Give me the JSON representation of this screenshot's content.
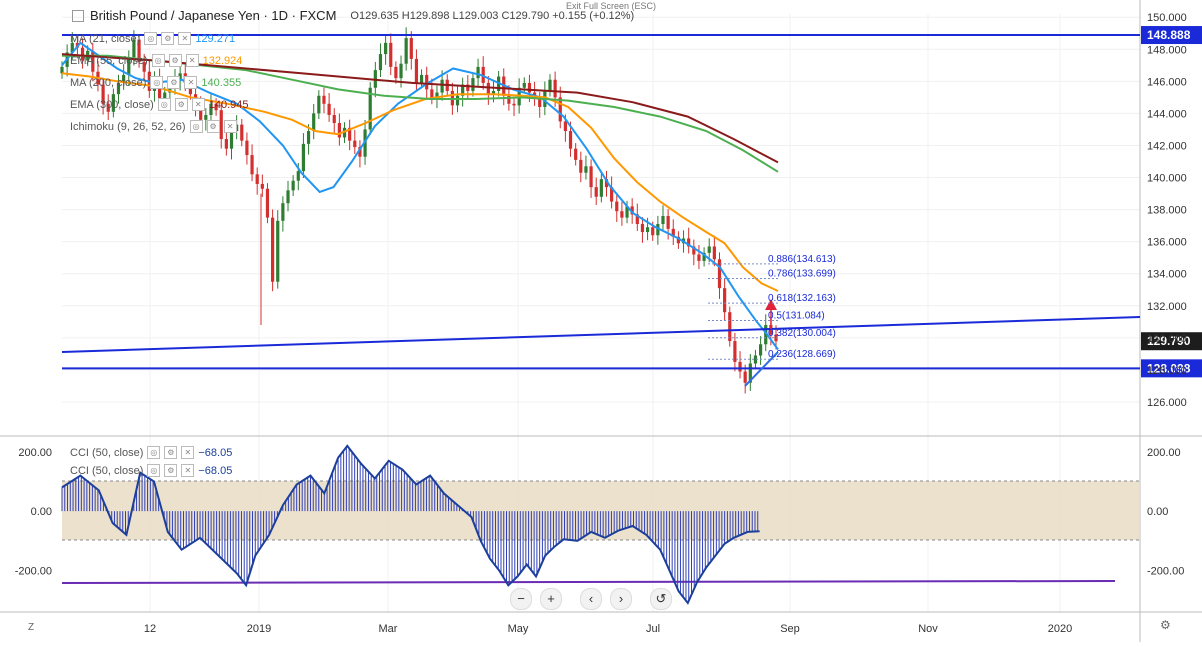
{
  "header": {
    "symbol": "British Pound / Japanese Yen · 1D · FXCM",
    "ohlc": "O129.635  H129.898  L129.003  C129.790  +0.155 (+0.12%)",
    "exit_fullscreen": "Exit Full Screen (ESC)"
  },
  "legend": [
    {
      "label": "MA (21, close)",
      "value": "129.271",
      "color": "#2196f3"
    },
    {
      "label": "EMA (55, close)",
      "value": "132.924",
      "color": "#ff9800"
    },
    {
      "label": "MA (200, close)",
      "value": "140.355",
      "color": "#4caf50"
    },
    {
      "label": "EMA (300, close)",
      "value": "140.945",
      "color": "#8b1a1a"
    },
    {
      "label": "Ichimoku (9, 26, 52, 26)",
      "value": "",
      "color": "#999999"
    }
  ],
  "cci_legend": [
    {
      "label": "CCI (50, close)",
      "value": "−68.05"
    },
    {
      "label": "CCI (50, close)",
      "value": "−68.05"
    }
  ],
  "nav": {
    "zoom_out": "−",
    "zoom_in": "+",
    "left": "‹",
    "right": "›",
    "reset": "↺"
  },
  "corner_left": "Z",
  "chart_data": {
    "type": "candlestick",
    "title": "British Pound / Japanese Yen · 1D · FXCM",
    "ylim": [
      125.5,
      150.2
    ],
    "y_ticks": [
      "150.000",
      "148.000",
      "146.000",
      "144.000",
      "142.000",
      "140.000",
      "138.000",
      "136.000",
      "134.000",
      "132.000",
      "130.000",
      "128.000",
      "126.000"
    ],
    "x_ticks": [
      "12",
      "2019",
      "Mar",
      "May",
      "Jul",
      "Sep",
      "Nov",
      "2020"
    ],
    "price_levels": [
      {
        "label": "148.888",
        "value": 148.888,
        "color": "#1a2ad8"
      },
      {
        "label": "129.790",
        "value": 129.79,
        "color": "#1d1d1d"
      },
      {
        "label": "128.098",
        "value": 128.098,
        "color": "#1a2ad8"
      }
    ],
    "fibonacci": [
      {
        "label": "0.886(134.613)",
        "value": 134.613
      },
      {
        "label": "0.786(133.699)",
        "value": 133.699
      },
      {
        "label": "0.618(132.163)",
        "value": 132.163
      },
      {
        "label": "0.5(131.084)",
        "value": 131.084
      },
      {
        "label": "0.382(130.004)",
        "value": 130.004
      },
      {
        "label": "0.236(128.669)",
        "value": 128.669
      }
    ],
    "series": [
      {
        "name": "MA (21, close)",
        "points": [
          [
            0,
            147.0
          ],
          [
            20,
            148.4
          ],
          [
            40,
            147.6
          ],
          [
            60,
            146.8
          ],
          [
            80,
            146.2
          ],
          [
            100,
            145.9
          ],
          [
            130,
            146.1
          ],
          [
            160,
            145.3
          ],
          [
            190,
            144.6
          ],
          [
            215,
            143.5
          ],
          [
            240,
            142.0
          ],
          [
            260,
            140.3
          ],
          [
            280,
            139.1
          ],
          [
            295,
            139.4
          ],
          [
            315,
            141.0
          ],
          [
            340,
            143.2
          ],
          [
            365,
            144.6
          ],
          [
            395,
            145.8
          ],
          [
            425,
            146.8
          ],
          [
            455,
            146.4
          ],
          [
            490,
            145.5
          ],
          [
            520,
            145.0
          ],
          [
            545,
            143.8
          ],
          [
            570,
            141.8
          ],
          [
            595,
            139.5
          ],
          [
            620,
            137.8
          ],
          [
            645,
            136.9
          ],
          [
            670,
            136.2
          ],
          [
            695,
            135.3
          ],
          [
            715,
            134.4
          ],
          [
            735,
            132.6
          ],
          [
            755,
            131.0
          ],
          [
            765,
            130.3
          ],
          [
            778,
            129.271
          ]
        ]
      },
      {
        "name": "EMA (55, close)",
        "points": [
          [
            0,
            146.5
          ],
          [
            30,
            146.3
          ],
          [
            60,
            146.0
          ],
          [
            100,
            145.7
          ],
          [
            140,
            145.0
          ],
          [
            180,
            144.6
          ],
          [
            220,
            144.1
          ],
          [
            250,
            143.6
          ],
          [
            275,
            142.9
          ],
          [
            300,
            142.7
          ],
          [
            330,
            143.4
          ],
          [
            360,
            144.2
          ],
          [
            395,
            144.9
          ],
          [
            430,
            145.2
          ],
          [
            470,
            145.2
          ],
          [
            500,
            145.1
          ],
          [
            525,
            145.0
          ],
          [
            550,
            144.4
          ],
          [
            575,
            143.1
          ],
          [
            600,
            141.2
          ],
          [
            625,
            139.7
          ],
          [
            650,
            138.5
          ],
          [
            675,
            137.5
          ],
          [
            700,
            136.6
          ],
          [
            720,
            135.9
          ],
          [
            740,
            134.4
          ],
          [
            760,
            133.4
          ],
          [
            778,
            132.924
          ]
        ]
      },
      {
        "name": "MA (200, close)",
        "points": [
          [
            0,
            147.6
          ],
          [
            50,
            147.6
          ],
          [
            100,
            147.3
          ],
          [
            150,
            147.0
          ],
          [
            200,
            146.7
          ],
          [
            250,
            146.1
          ],
          [
            300,
            145.5
          ],
          [
            350,
            145.1
          ],
          [
            400,
            144.9
          ],
          [
            450,
            144.9
          ],
          [
            500,
            145.0
          ],
          [
            550,
            144.8
          ],
          [
            600,
            144.4
          ],
          [
            650,
            143.8
          ],
          [
            700,
            142.9
          ],
          [
            740,
            141.7
          ],
          [
            778,
            140.355
          ]
        ]
      },
      {
        "name": "EMA (300, close)",
        "points": [
          [
            0,
            147.7
          ],
          [
            100,
            147.3
          ],
          [
            200,
            146.8
          ],
          [
            260,
            146.5
          ],
          [
            320,
            146.2
          ],
          [
            380,
            145.9
          ],
          [
            440,
            145.7
          ],
          [
            500,
            145.5
          ],
          [
            560,
            145.3
          ],
          [
            620,
            144.7
          ],
          [
            680,
            143.8
          ],
          [
            730,
            142.4
          ],
          [
            778,
            140.945
          ]
        ]
      }
    ],
    "candles_close": [
      146.9,
      147.8,
      148.4,
      148.1,
      147.3,
      147.9,
      146.6,
      145.8,
      144.6,
      144.1,
      145.2,
      145.9,
      146.4,
      147.5,
      148.6,
      147.2,
      146.6,
      145.4,
      146.2,
      144.7,
      145.3,
      145.6,
      146.1,
      146.5,
      145.9,
      145.2,
      144.4,
      143.6,
      143.9,
      144.6,
      144.2,
      142.4,
      141.8,
      142.9,
      143.3,
      142.3,
      141.4,
      140.2,
      139.6,
      139.3,
      137.5,
      133.5,
      137.3,
      138.4,
      139.2,
      139.8,
      140.4,
      142.1,
      142.9,
      144.0,
      145.1,
      144.6,
      143.9,
      143.4,
      142.5,
      143.1,
      142.3,
      141.9,
      141.3,
      143.0,
      145.6,
      146.7,
      147.7,
      148.4,
      146.9,
      146.2,
      147.1,
      148.7,
      147.4,
      145.9,
      146.4,
      145.5,
      145.0,
      145.3,
      146.1,
      145.4,
      144.5,
      145.1,
      145.8,
      145.4,
      146.2,
      146.9,
      145.9,
      145.2,
      145.4,
      146.3,
      145.1,
      144.6,
      144.5,
      145.6,
      145.9,
      145.3,
      144.9,
      144.4,
      145.4,
      146.1,
      145.0,
      143.5,
      142.9,
      141.8,
      141.1,
      140.3,
      140.7,
      139.4,
      138.8,
      139.9,
      139.4,
      138.5,
      137.9,
      137.5,
      138.2,
      137.7,
      137.1,
      136.6,
      136.9,
      136.4,
      137.1,
      137.6,
      136.8,
      136.3,
      135.9,
      136.2,
      135.7,
      135.2,
      134.8,
      135.3,
      135.7,
      134.9,
      133.1,
      131.6,
      129.8,
      128.5,
      127.9,
      127.2,
      128.4,
      128.9,
      129.6,
      130.8,
      130.2,
      129.79
    ],
    "cci_points": [
      [
        0,
        80
      ],
      [
        20,
        120
      ],
      [
        40,
        70
      ],
      [
        55,
        -40
      ],
      [
        70,
        -80
      ],
      [
        85,
        130
      ],
      [
        100,
        100
      ],
      [
        115,
        -70
      ],
      [
        130,
        -130
      ],
      [
        150,
        -90
      ],
      [
        170,
        -150
      ],
      [
        190,
        -210
      ],
      [
        200,
        -250
      ],
      [
        210,
        -150
      ],
      [
        225,
        -80
      ],
      [
        240,
        20
      ],
      [
        255,
        90
      ],
      [
        270,
        120
      ],
      [
        285,
        60
      ],
      [
        300,
        180
      ],
      [
        310,
        220
      ],
      [
        325,
        160
      ],
      [
        340,
        110
      ],
      [
        355,
        170
      ],
      [
        370,
        140
      ],
      [
        385,
        90
      ],
      [
        400,
        120
      ],
      [
        415,
        60
      ],
      [
        430,
        20
      ],
      [
        445,
        -20
      ],
      [
        455,
        -100
      ],
      [
        465,
        -160
      ],
      [
        475,
        -200
      ],
      [
        485,
        -250
      ],
      [
        495,
        -220
      ],
      [
        505,
        -180
      ],
      [
        515,
        -220
      ],
      [
        525,
        -150
      ],
      [
        535,
        -120
      ],
      [
        545,
        -95
      ],
      [
        560,
        -100
      ],
      [
        575,
        -70
      ],
      [
        590,
        -90
      ],
      [
        605,
        -65
      ],
      [
        620,
        -50
      ],
      [
        635,
        -80
      ],
      [
        650,
        -130
      ],
      [
        660,
        -200
      ],
      [
        670,
        -270
      ],
      [
        680,
        -310
      ],
      [
        690,
        -240
      ],
      [
        700,
        -190
      ],
      [
        710,
        -150
      ],
      [
        720,
        -110
      ],
      [
        730,
        -90
      ],
      [
        745,
        -70
      ],
      [
        758,
        -68
      ]
    ],
    "cci_ylim": [
      -320,
      240
    ],
    "cci_ticks": [
      "200.00",
      "0.00",
      "-200.00"
    ]
  }
}
